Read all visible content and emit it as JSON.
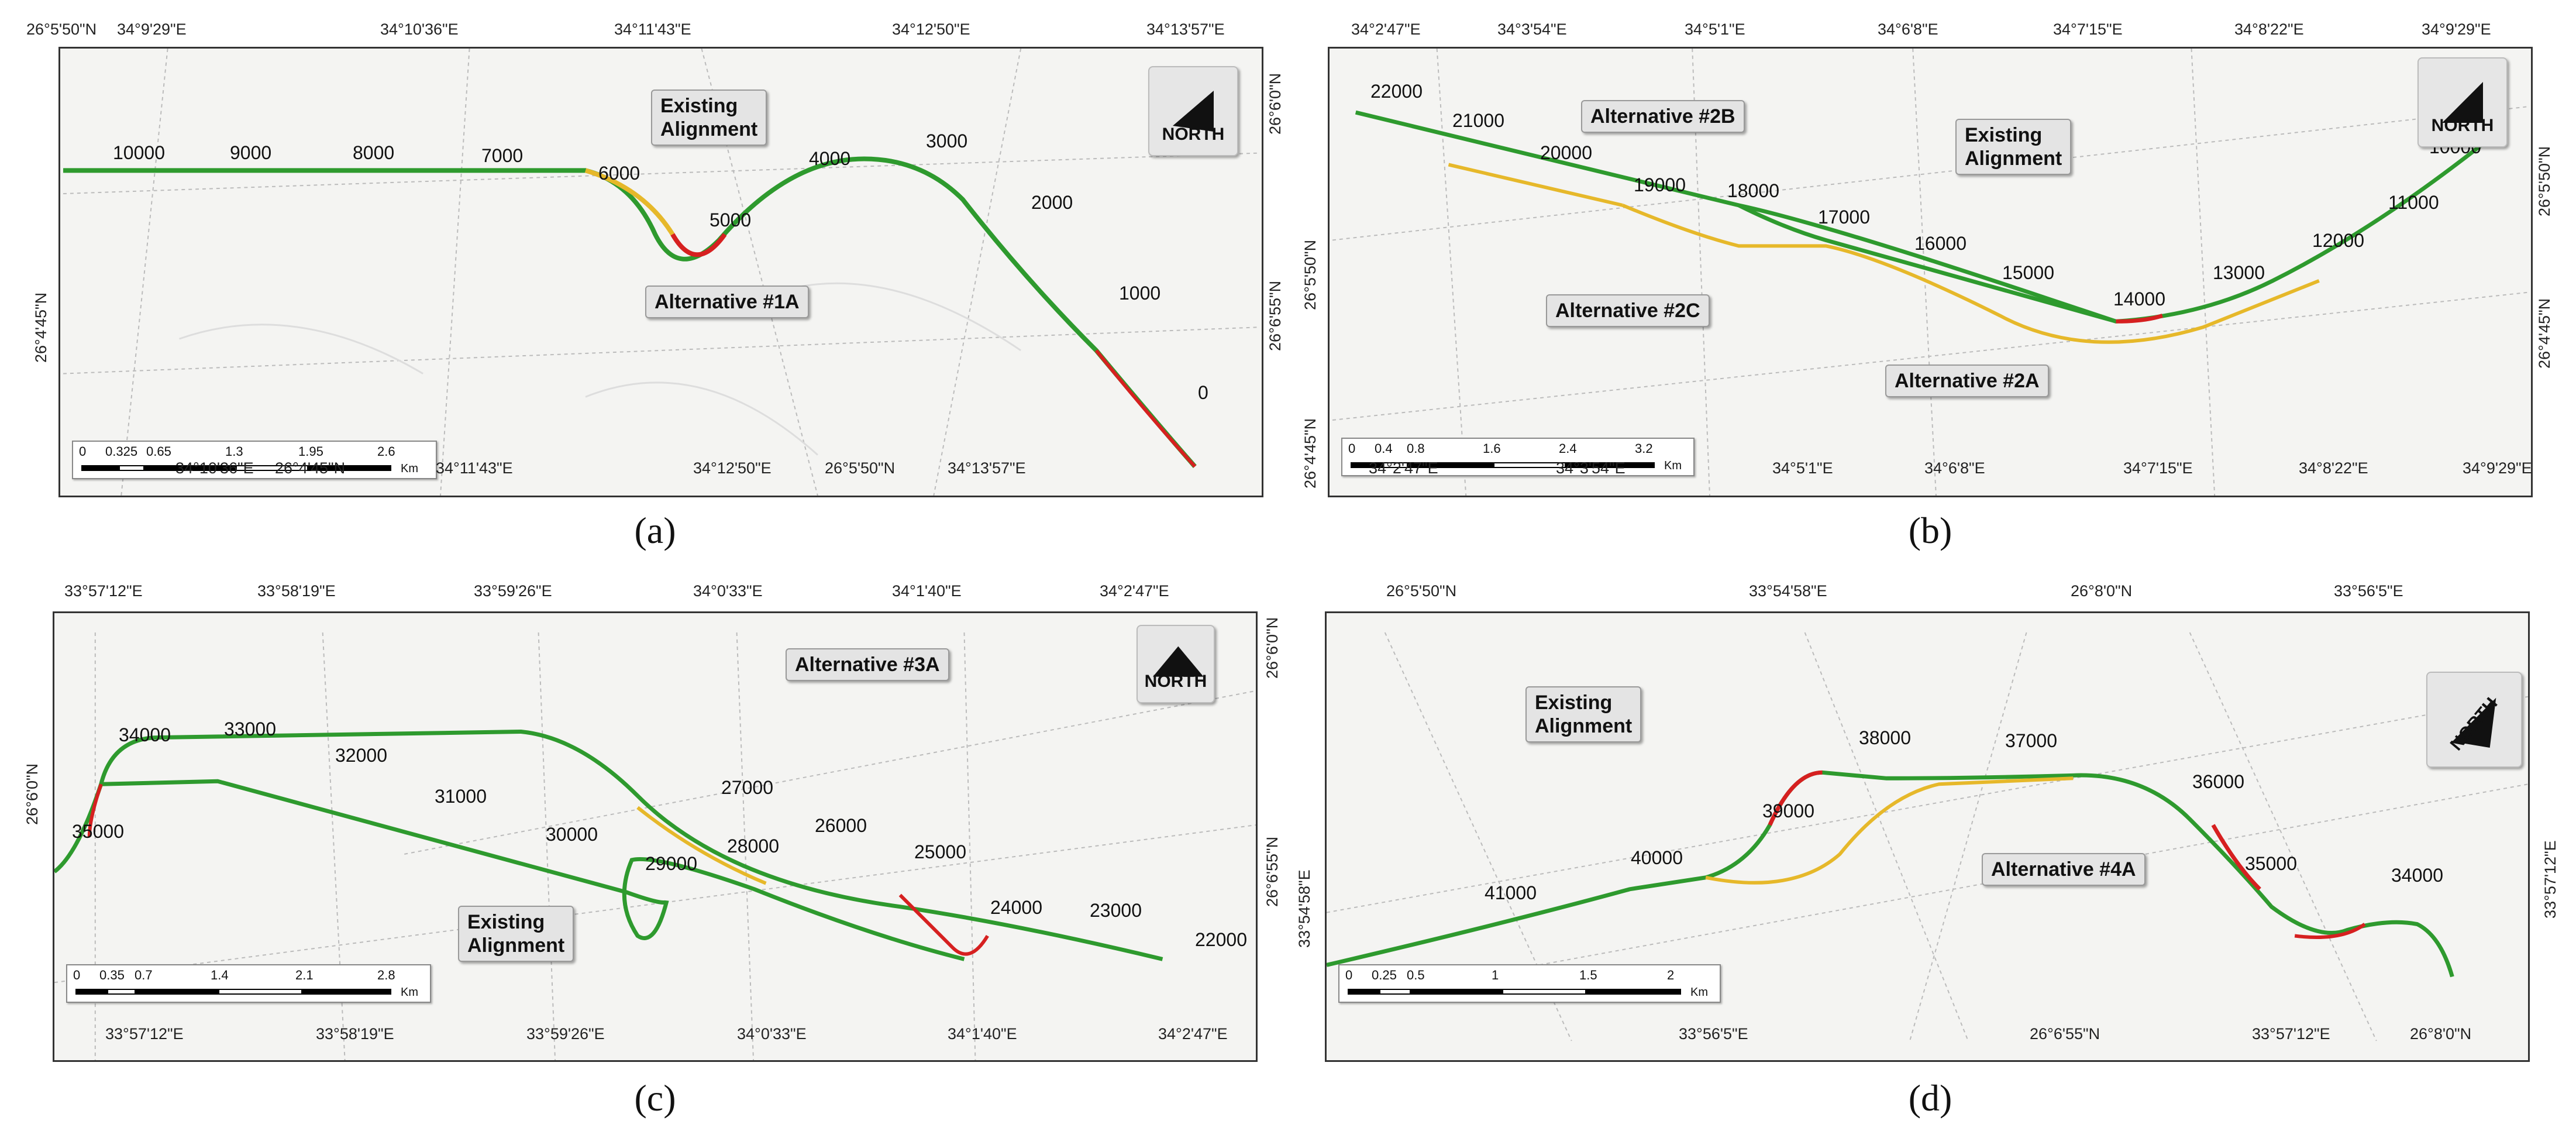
{
  "panels": [
    {
      "id": "a",
      "caption": "(a)",
      "north_label": "NORTH",
      "top_coords": [
        "26°5'50\"N",
        "34°9'29\"E",
        "34°10'36\"E",
        "34°11'43\"E",
        "34°12'50\"E",
        "34°13'57\"E"
      ],
      "bottom_coords": [
        "34°10'36\"E",
        "26°4'45\"N",
        "34°11'43\"E",
        "34°12'50\"E",
        "26°5'50\"N",
        "34°13'57\"E"
      ],
      "left_coords": [
        "26°4'45\"N"
      ],
      "right_coords": [
        "26°6'0\"N",
        "26°6'55\"N"
      ],
      "km_labels": [
        "10000",
        "9000",
        "8000",
        "7000",
        "6000",
        "5000",
        "4000",
        "3000",
        "2000",
        "1000",
        "0"
      ],
      "callouts": [
        "Existing\nAlignment",
        "Alternative #1A"
      ],
      "scale_ticks": [
        "0",
        "0.325",
        "0.65",
        "1.3",
        "1.95",
        "2.6"
      ],
      "scale_unit": "Km"
    },
    {
      "id": "b",
      "caption": "(b)",
      "north_label": "NORTH",
      "top_coords": [
        "34°2'47\"E",
        "34°3'54\"E",
        "34°5'1\"E",
        "34°6'8\"E",
        "34°7'15\"E",
        "34°8'22\"E",
        "34°9'29\"E"
      ],
      "bottom_coords": [
        "26°4'45\"N",
        "34°2'47\"E",
        "34°3'54\"E",
        "34°5'1\"E",
        "34°6'8\"E",
        "34°7'15\"E",
        "34°8'22\"E",
        "34°9'29\"E"
      ],
      "left_coords": [
        "26°5'50\"N"
      ],
      "right_coords": [
        "26°5'50\"N",
        "26°4'45\"N"
      ],
      "km_labels": [
        "22000",
        "21000",
        "20000",
        "19000",
        "18000",
        "17000",
        "16000",
        "15000",
        "14000",
        "13000",
        "12000",
        "11000",
        "10000"
      ],
      "callouts": [
        "Alternative #2B",
        "Existing\nAlignment",
        "Alternative #2C",
        "Alternative #2A"
      ],
      "scale_ticks": [
        "0",
        "0.4",
        "0.8",
        "1.6",
        "2.4",
        "3.2"
      ],
      "scale_unit": "Km"
    },
    {
      "id": "c",
      "caption": "(c)",
      "north_label": "NORTH",
      "top_coords": [
        "33°57'12\"E",
        "33°58'19\"E",
        "33°59'26\"E",
        "34°0'33\"E",
        "34°1'40\"E",
        "34°2'47\"E"
      ],
      "bottom_coords": [
        "33°57'12\"E",
        "33°58'19\"E",
        "33°59'26\"E",
        "34°0'33\"E",
        "34°1'40\"E",
        "34°2'47\"E"
      ],
      "left_coords": [
        "26°6'0\"N"
      ],
      "right_coords": [
        "26°6'0\"N",
        "26°6'55\"N"
      ],
      "km_labels": [
        "35000",
        "34000",
        "33000",
        "32000",
        "31000",
        "30000",
        "29000",
        "28000",
        "27000",
        "26000",
        "25000",
        "24000",
        "23000",
        "22000"
      ],
      "callouts": [
        "Alternative #3A",
        "Existing\nAlignment"
      ],
      "scale_ticks": [
        "0",
        "0.35",
        "0.7",
        "1.4",
        "2.1",
        "2.8"
      ],
      "scale_unit": "Km"
    },
    {
      "id": "d",
      "caption": "(d)",
      "north_label": "NORTH",
      "top_coords": [
        "26°5'50\"N",
        "33°54'58\"E",
        "26°8'0\"N",
        "33°56'5\"E"
      ],
      "bottom_coords": [
        "33°56'5\"E",
        "26°6'55\"N",
        "33°57'12\"E",
        "26°8'0\"N"
      ],
      "left_coords": [
        "33°54'58\"E"
      ],
      "right_coords": [
        "33°57'12\"E"
      ],
      "km_labels": [
        "41000",
        "40000",
        "39000",
        "38000",
        "37000",
        "36000",
        "35000",
        "34000"
      ],
      "callouts": [
        "Existing\nAlignment",
        "Alternative #4A"
      ],
      "scale_ticks": [
        "0",
        "0.25",
        "0.5",
        "1",
        "1.5",
        "2"
      ],
      "scale_unit": "Km"
    }
  ],
  "colors": {
    "route_green": "#2e9a2e",
    "route_yellow": "#e6b82a",
    "route_red": "#d62020",
    "route_light": "#a6d23a",
    "callout_bg": "#e4e4e4"
  }
}
